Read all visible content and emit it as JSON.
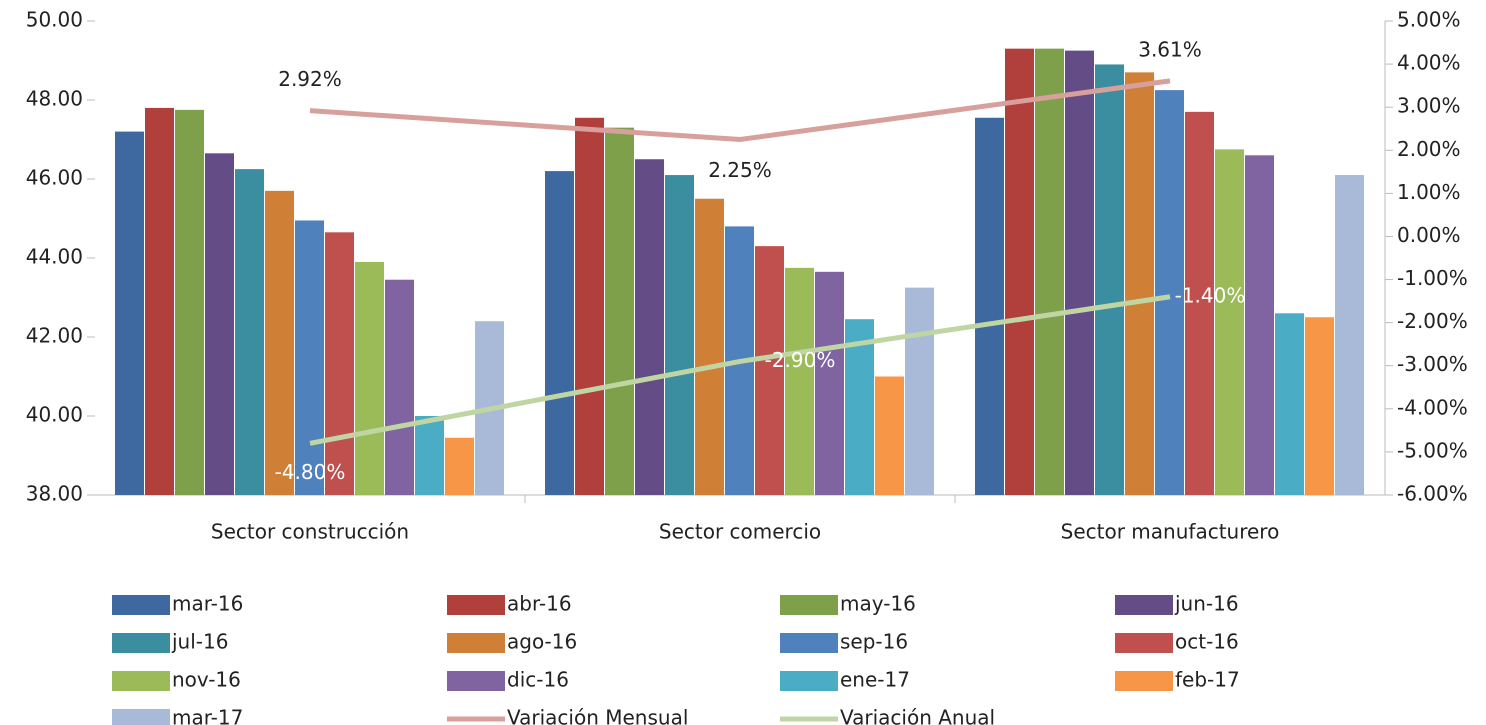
{
  "chart_data": {
    "type": "bar",
    "categories": [
      "Sector construcción",
      "Sector comercio",
      "Sector manufacturero"
    ],
    "series": [
      {
        "name": "mar-16",
        "color": "#3d68a0",
        "values": [
          47.2,
          46.2,
          47.55
        ]
      },
      {
        "name": "abr-16",
        "color": "#b13f3c",
        "values": [
          47.8,
          47.55,
          49.3
        ]
      },
      {
        "name": "may-16",
        "color": "#7ea04a",
        "values": [
          47.75,
          47.3,
          49.3
        ]
      },
      {
        "name": "jun-16",
        "color": "#644c86",
        "values": [
          46.65,
          46.5,
          49.25
        ]
      },
      {
        "name": "jul-16",
        "color": "#3a8ea0",
        "values": [
          46.25,
          46.1,
          48.9
        ]
      },
      {
        "name": "ago-16",
        "color": "#d07f37",
        "values": [
          45.7,
          45.5,
          48.7
        ]
      },
      {
        "name": "sep-16",
        "color": "#4f81bd",
        "values": [
          44.95,
          44.8,
          48.25
        ]
      },
      {
        "name": "oct-16",
        "color": "#c0504d",
        "values": [
          44.65,
          44.3,
          47.7
        ]
      },
      {
        "name": "nov-16",
        "color": "#9bbb59",
        "values": [
          43.9,
          43.75,
          46.75
        ]
      },
      {
        "name": "dic-16",
        "color": "#8064a2",
        "values": [
          43.45,
          43.65,
          46.6
        ]
      },
      {
        "name": "ene-17",
        "color": "#4bacc6",
        "values": [
          40.0,
          42.45,
          42.6
        ]
      },
      {
        "name": "feb-17",
        "color": "#f79646",
        "values": [
          39.45,
          41.0,
          42.5
        ]
      },
      {
        "name": "mar-17",
        "color": "#a9b9d8",
        "values": [
          42.4,
          43.25,
          46.1
        ]
      },
      {
        "name": "Variación Mensual",
        "type": "line",
        "axis": "y2",
        "color": "#d8a09d",
        "values": [
          2.92,
          2.25,
          3.61
        ],
        "value_labels": [
          "2.92%",
          "2.25%",
          "3.61%"
        ]
      },
      {
        "name": "Variación Anual",
        "type": "line",
        "axis": "y2",
        "color": "#bfd6a4",
        "values": [
          -4.8,
          -2.9,
          -1.4
        ],
        "value_labels": [
          "-4.80%",
          "-2.90%",
          "-1.40%"
        ]
      }
    ],
    "ylim": [
      38,
      50
    ],
    "yticks": [
      {
        "value": 38,
        "label": "38.00"
      },
      {
        "value": 40,
        "label": "40.00"
      },
      {
        "value": 42,
        "label": "42.00"
      },
      {
        "value": 44,
        "label": "44.00"
      },
      {
        "value": 46,
        "label": "46.00"
      },
      {
        "value": 48,
        "label": "48.00"
      },
      {
        "value": 50,
        "label": "50.00"
      }
    ],
    "y2lim": [
      -6,
      5
    ],
    "y2ticks": [
      {
        "value": -6,
        "label": "-6.00%"
      },
      {
        "value": -5,
        "label": "-5.00%"
      },
      {
        "value": -4,
        "label": "-4.00%"
      },
      {
        "value": -3,
        "label": "-3.00%"
      },
      {
        "value": -2,
        "label": "-2.00%"
      },
      {
        "value": -1,
        "label": "-1.00%"
      },
      {
        "value": 0,
        "label": "0.00%"
      },
      {
        "value": 1,
        "label": "1.00%"
      },
      {
        "value": 2,
        "label": "2.00%"
      },
      {
        "value": 3,
        "label": "3.00%"
      },
      {
        "value": 4,
        "label": "4.00%"
      },
      {
        "value": 5,
        "label": "5.00%"
      }
    ],
    "legend": "bottom"
  }
}
